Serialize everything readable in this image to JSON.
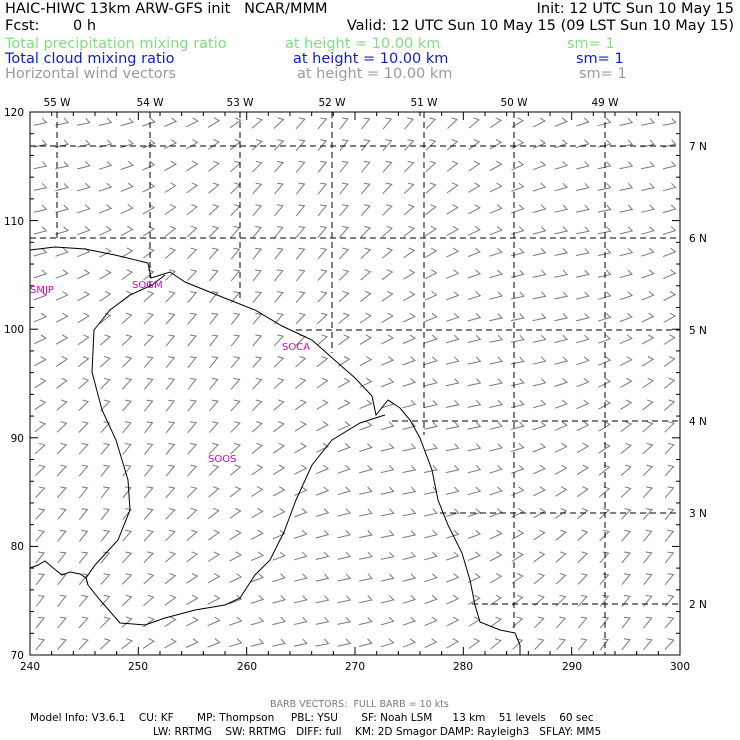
{
  "header": {
    "left_line1": "HAIC-HIWC 13km ARW-GFS init   NCAR/MMM",
    "right_line1": "Init: 12 UTC Sun 10 May 15",
    "fcst_label": "Fcst:",
    "fcst_value": "0 h",
    "valid_line": "Valid: 12 UTC Sun 10 May 15 (09 LST Sun 10 May 15)",
    "fields": [
      {
        "name": "Total precipitation mixing ratio",
        "height": "at height = 10.00 km",
        "sm": "sm= 1",
        "color": "#7fe07f"
      },
      {
        "name": "Total cloud mixing ratio",
        "height": "at height = 10.00 km",
        "sm": "sm= 1",
        "color": "#0a1fd2"
      },
      {
        "name": "Horizontal wind vectors",
        "height": "at height = 10.00 km",
        "sm": "sm= 1",
        "color": "#9a9a9a"
      }
    ]
  },
  "map": {
    "x_ticks": [
      "240",
      "250",
      "260",
      "270",
      "280",
      "290",
      "300"
    ],
    "y_ticks": [
      "120",
      "110",
      "100",
      "90",
      "80",
      "70"
    ],
    "lon_labels": [
      "55 W",
      "54 W",
      "53 W",
      "52 W",
      "51 W",
      "50 W",
      "49 W"
    ],
    "lat_labels": [
      "7 N",
      "6 N",
      "5 N",
      "4 N",
      "3 N",
      "2 N"
    ],
    "stations": [
      "SMJP",
      "SOCA",
      "SOOS",
      "SOGM"
    ],
    "coast_color": "#000000",
    "grid_color": "#000000",
    "barb_color": "#7a7a7a"
  },
  "footer": {
    "barb_note": "BARB VECTORS:  FULL BARB = 10 kts",
    "model_line1": "Model Info: V3.6.1    CU: KF       MP: Thompson     PBL: YSU       SF: Noah LSM      13 km    51 levels    60 sec",
    "model_line2": "LW: RRTMG    SW: RRTMG   DIFF: full    KM: 2D Smagor DAMP: Rayleigh3   SFLAY: MM5"
  }
}
